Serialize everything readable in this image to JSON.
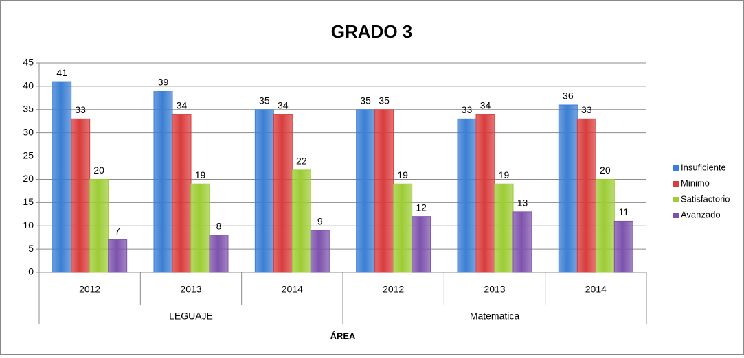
{
  "chart_data": {
    "type": "bar",
    "title": "GRADO 3",
    "x_label": "ÁREA",
    "groups": [
      {
        "name": "LEGUAJE",
        "categories": [
          "2012",
          "2013",
          "2014"
        ]
      },
      {
        "name": "Matematica",
        "categories": [
          "2012",
          "2013",
          "2014"
        ]
      }
    ],
    "series": [
      {
        "name": "Insuficiente",
        "color": "#3b7fd4",
        "values": [
          41,
          39,
          35,
          35,
          33,
          36
        ]
      },
      {
        "name": "Minimo",
        "color": "#d93c3c",
        "values": [
          33,
          34,
          34,
          35,
          34,
          33
        ]
      },
      {
        "name": "Satisfactorio",
        "color": "#9dcc35",
        "values": [
          20,
          19,
          22,
          19,
          19,
          20
        ]
      },
      {
        "name": "Avanzado",
        "color": "#7d52ad",
        "values": [
          7,
          8,
          9,
          12,
          13,
          11
        ]
      }
    ],
    "ylim": [
      0,
      45
    ],
    "yticks": [
      0,
      5,
      10,
      15,
      20,
      25,
      30,
      35,
      40,
      45
    ],
    "grid": true,
    "legend": "right"
  }
}
